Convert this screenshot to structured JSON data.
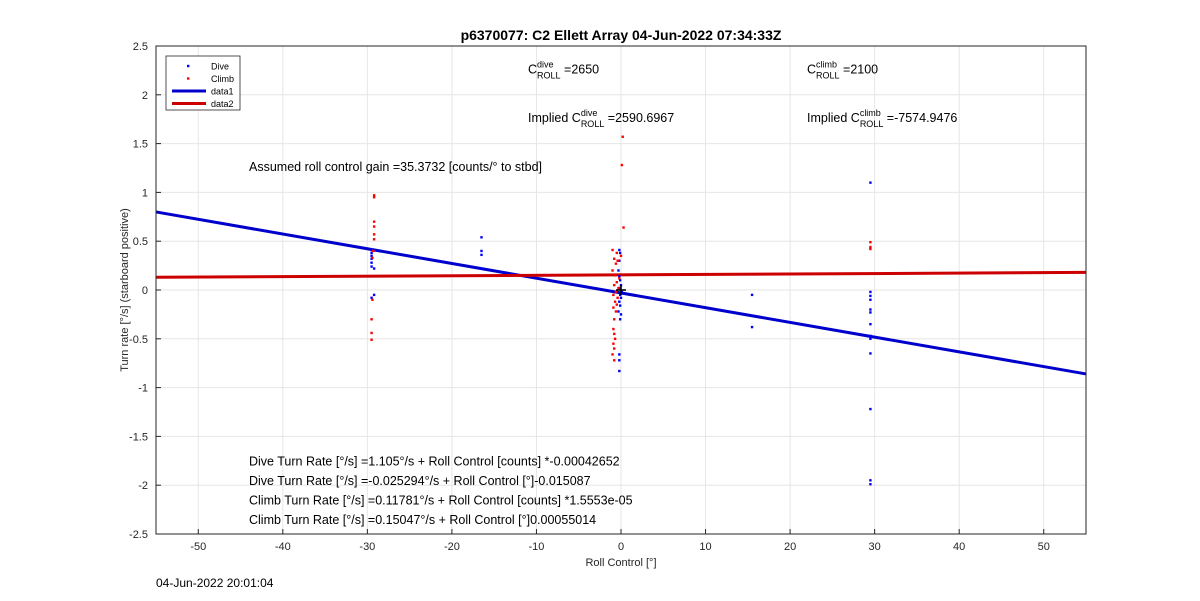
{
  "figure": {
    "timestamp": "04-Jun-2022 20:01:04"
  },
  "chart_data": {
    "type": "scatter",
    "title": "p6370077: C2 Ellett Array 04-Jun-2022 07:34:33Z",
    "xlabel": "Roll Control [°]",
    "ylabel": "Turn rate [°/s] (starboard positive)",
    "xlim": [
      -55,
      55
    ],
    "ylim": [
      -2.5,
      2.5
    ],
    "xticks": [
      -50,
      -40,
      -30,
      -20,
      -10,
      0,
      10,
      20,
      30,
      40,
      50
    ],
    "yticks": [
      -2.5,
      -2,
      -1.5,
      -1,
      -0.5,
      0,
      0.5,
      1,
      1.5,
      2,
      2.5
    ],
    "grid": true,
    "legend_position": "top-left",
    "series": [
      {
        "name": "Dive",
        "kind": "points",
        "color": "#0000ff",
        "points": [
          [
            -29.5,
            0.41
          ],
          [
            -29.5,
            0.38
          ],
          [
            -29.5,
            0.35
          ],
          [
            -29.5,
            0.32
          ],
          [
            -29.5,
            0.28
          ],
          [
            -29.5,
            0.24
          ],
          [
            -29.2,
            0.22
          ],
          [
            -29.2,
            -0.05
          ],
          [
            -29.5,
            -0.08
          ],
          [
            -16.5,
            0.54
          ],
          [
            -16.5,
            0.4
          ],
          [
            -16.5,
            0.36
          ],
          [
            -16.5,
            0.22
          ],
          [
            -0.2,
            0.41
          ],
          [
            -0.1,
            0.38
          ],
          [
            -0.2,
            0.3
          ],
          [
            -0.3,
            0.2
          ],
          [
            -0.2,
            0.14
          ],
          [
            -0.1,
            0.1
          ],
          [
            0.0,
            0.05
          ],
          [
            -0.2,
            0.02
          ],
          [
            0.1,
            -0.02
          ],
          [
            -0.1,
            -0.05
          ],
          [
            0.0,
            -0.08
          ],
          [
            -0.2,
            -0.12
          ],
          [
            -0.1,
            -0.16
          ],
          [
            -0.3,
            -0.22
          ],
          [
            0.0,
            -0.25
          ],
          [
            -0.1,
            -0.3
          ],
          [
            -0.2,
            -0.66
          ],
          [
            -0.2,
            -0.72
          ],
          [
            -0.2,
            -0.83
          ],
          [
            15.5,
            -0.05
          ],
          [
            15.5,
            -0.38
          ],
          [
            29.5,
            1.1
          ],
          [
            29.5,
            -0.02
          ],
          [
            29.5,
            -0.06
          ],
          [
            29.5,
            -0.1
          ],
          [
            29.5,
            -0.2
          ],
          [
            29.5,
            -0.23
          ],
          [
            29.5,
            -0.35
          ],
          [
            29.5,
            -0.47
          ],
          [
            29.5,
            -0.5
          ],
          [
            29.5,
            -0.65
          ],
          [
            29.5,
            -1.22
          ],
          [
            29.5,
            -1.95
          ],
          [
            29.5,
            -1.99
          ]
        ]
      },
      {
        "name": "Climb",
        "kind": "points",
        "color": "#ff0000",
        "points": [
          [
            -29.2,
            0.97
          ],
          [
            -29.2,
            0.95
          ],
          [
            -29.2,
            0.7
          ],
          [
            -29.2,
            0.65
          ],
          [
            -29.2,
            0.57
          ],
          [
            -29.2,
            0.52
          ],
          [
            -29.3,
            0.4
          ],
          [
            -29.4,
            0.33
          ],
          [
            -29.4,
            -0.1
          ],
          [
            -29.5,
            -0.3
          ],
          [
            -29.5,
            -0.44
          ],
          [
            -29.5,
            -0.51
          ],
          [
            0.2,
            1.57
          ],
          [
            0.1,
            1.28
          ],
          [
            0.3,
            0.64
          ],
          [
            -1.0,
            0.41
          ],
          [
            -0.5,
            0.38
          ],
          [
            0.0,
            0.35
          ],
          [
            -0.8,
            0.32
          ],
          [
            -0.4,
            0.3
          ],
          [
            -0.6,
            0.27
          ],
          [
            -1.0,
            0.2
          ],
          [
            -0.7,
            0.15
          ],
          [
            -0.2,
            0.12
          ],
          [
            -0.5,
            0.08
          ],
          [
            -0.8,
            0.05
          ],
          [
            -0.3,
            0.02
          ],
          [
            -0.6,
            -0.02
          ],
          [
            -0.9,
            -0.05
          ],
          [
            -0.4,
            -0.08
          ],
          [
            -0.7,
            -0.12
          ],
          [
            -0.5,
            -0.15
          ],
          [
            -0.9,
            -0.18
          ],
          [
            -0.6,
            -0.22
          ],
          [
            -0.8,
            -0.3
          ],
          [
            -0.9,
            -0.4
          ],
          [
            -0.8,
            -0.45
          ],
          [
            -0.7,
            -0.5
          ],
          [
            -0.9,
            -0.55
          ],
          [
            -0.8,
            -0.6
          ],
          [
            -1.0,
            -0.66
          ],
          [
            -0.8,
            -0.72
          ],
          [
            29.5,
            0.49
          ],
          [
            29.5,
            0.44
          ],
          [
            29.5,
            0.42
          ]
        ]
      },
      {
        "name": "data1",
        "kind": "line",
        "color": "#0000cc",
        "points": [
          [
            -55,
            0.8
          ],
          [
            55,
            -0.86
          ]
        ]
      },
      {
        "name": "data2",
        "kind": "line",
        "color": "#cc0000",
        "points": [
          [
            -55,
            0.13
          ],
          [
            55,
            0.18
          ]
        ]
      }
    ],
    "annotations": [
      {
        "id": "cdive",
        "base": "C",
        "sup": "dive",
        "sub": "ROLL",
        "text": " =2650",
        "x": -11,
        "y": 2.22
      },
      {
        "id": "cclimb",
        "base": "C",
        "sup": "climb",
        "sub": "ROLL",
        "text": " =2100",
        "x": 22,
        "y": 2.22
      },
      {
        "id": "implied-dive",
        "prefix": "Implied ",
        "base": "C",
        "sup": "dive",
        "sub": "ROLL",
        "text": " =2590.6967",
        "x": -11,
        "y": 1.72
      },
      {
        "id": "implied-climb",
        "prefix": "Implied ",
        "base": "C",
        "sup": "climb",
        "sub": "ROLL",
        "text": " =-7574.9476",
        "x": 22,
        "y": 1.72
      },
      {
        "id": "gain",
        "text": "Assumed roll control gain =35.3732 [counts/° to stbd]",
        "x": -44,
        "y": 1.22
      },
      {
        "id": "fit1",
        "text": "Dive Turn Rate [°/s] =1.105°/s + Roll Control [counts] *-0.00042652",
        "x": -44,
        "y": -1.8
      },
      {
        "id": "fit2",
        "text": "Dive Turn Rate [°/s] =-0.025294°/s + Roll Control [°]-0.015087",
        "x": -44,
        "y": -2.0
      },
      {
        "id": "fit3",
        "text": "Climb Turn Rate [°/s] =0.11781°/s + Roll Control [counts] *1.5553e-05",
        "x": -44,
        "y": -2.2
      },
      {
        "id": "fit4",
        "text": "Climb Turn Rate [°/s] =0.15047°/s + Roll Control [°]0.00055014",
        "x": -44,
        "y": -2.4
      }
    ]
  }
}
